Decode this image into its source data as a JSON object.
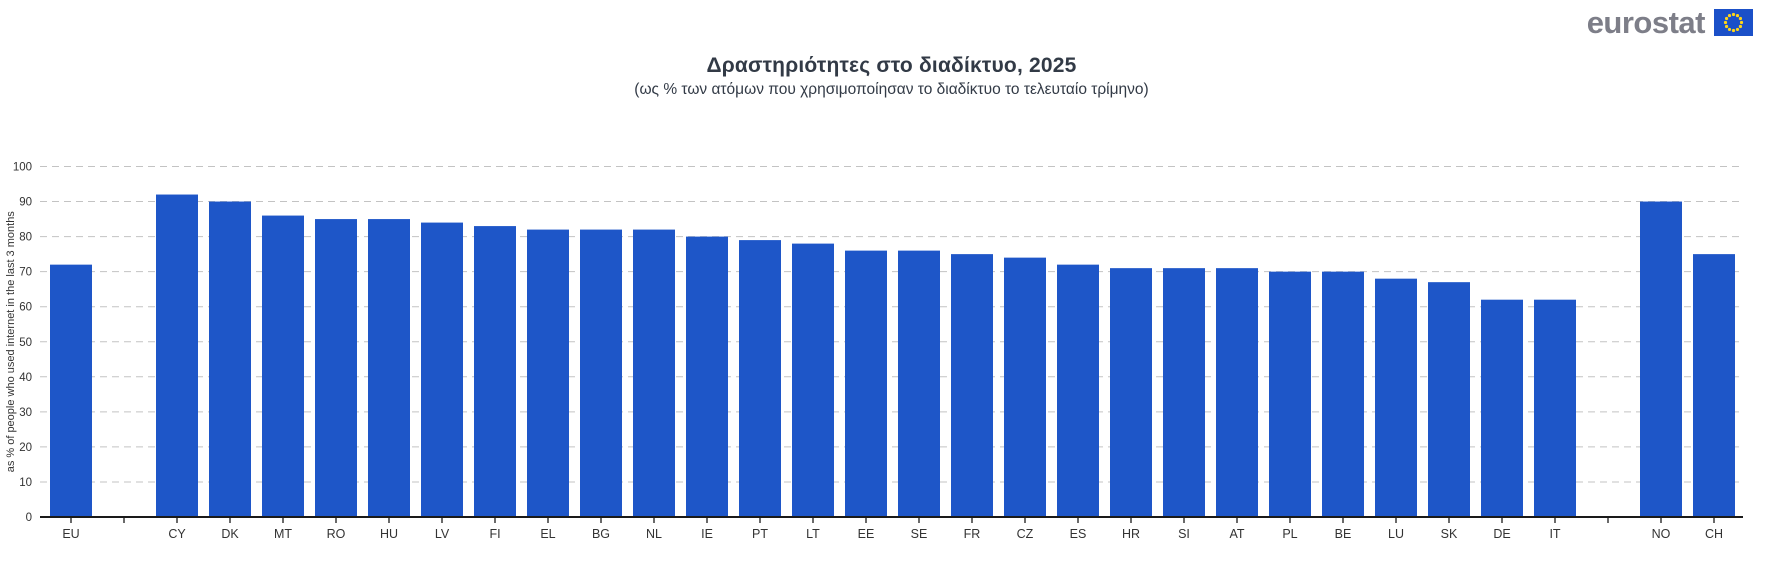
{
  "logo": {
    "text": "eurostat",
    "text_color": "#7d7e88",
    "flag_color": "#1b50c8",
    "star_color": "#ffd617"
  },
  "chart_data": {
    "type": "bar",
    "title": "Δραστηριότητες στο διαδίκτυο, 2025",
    "subtitle": "(ως % των ατόμων που χρησιμοποίησαν το διαδίκτυο το τελευταίο τρίμηνο)",
    "ylabel": "as % of people who used internet in the last 3 months",
    "xlabel": "",
    "categories": [
      "EU",
      "CY",
      "DK",
      "MT",
      "RO",
      "HU",
      "LV",
      "FI",
      "EL",
      "BG",
      "NL",
      "IE",
      "PT",
      "LT",
      "EE",
      "SE",
      "FR",
      "CZ",
      "ES",
      "HR",
      "SI",
      "AT",
      "PL",
      "BE",
      "LU",
      "SK",
      "DE",
      "IT",
      "NO",
      "CH"
    ],
    "values": [
      72,
      92,
      90,
      86,
      85,
      85,
      84,
      83,
      82,
      82,
      82,
      80,
      79,
      78,
      76,
      76,
      75,
      74,
      72,
      71,
      71,
      71,
      70,
      70,
      68,
      67,
      62,
      62,
      90,
      75
    ],
    "gap_after_categories": [
      "EU",
      "IT"
    ],
    "ylim": [
      0,
      100
    ],
    "yticks": [
      0,
      10,
      20,
      30,
      40,
      50,
      60,
      70,
      80,
      90,
      100
    ],
    "grid": "horizontal-dashed",
    "legend": "none",
    "bar_color": "#1e56c8",
    "gridline_color": "#c3c3c3",
    "axis_color": "#1a1a1a",
    "text_color": "#333333"
  }
}
